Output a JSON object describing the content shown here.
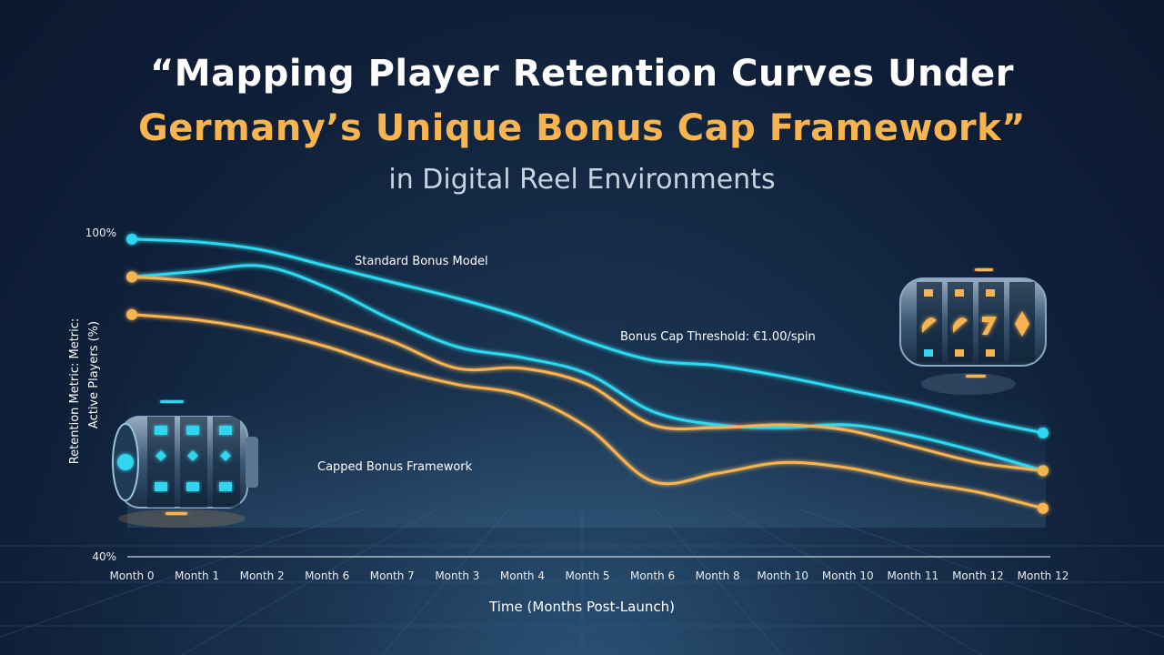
{
  "header": {
    "title_line1": "“Mapping Player Retention Curves Under",
    "title_line2": "Germany’s Unique Bonus Cap Framework”",
    "subtitle": "in Digital Reel Environments"
  },
  "colors": {
    "cyan": "#2fd8f0",
    "orange": "#f7b451",
    "title_white": "#ffffff",
    "title_orange": "#f7b451"
  },
  "icons": [
    "slot-reel-cyan-icon",
    "slot-reel-gold-icon"
  ],
  "chart_data": {
    "type": "line",
    "x_labels": [
      "Month 0",
      "Month 1",
      "Month 2",
      "Month 6",
      "Month 7",
      "Month 3",
      "Month 4",
      "Month 5",
      "Month 6",
      "Month 8",
      "Month 10",
      "Month 10",
      "Month 11",
      "Month 12",
      "Month 12"
    ],
    "ylabel_line1": "Retention Metric: Metric:",
    "ylabel_line2": "Active Players (%)",
    "xlabel": "Time (Months Post-Launch)",
    "y_tick_top": "100%",
    "y_tick_bottom": "40%",
    "ylim": [
      40,
      100
    ],
    "grid": false,
    "annotations": {
      "standard": "Standard Bonus Model",
      "threshold": "Bonus Cap Threshold: €1.00/spin",
      "capped": "Capped Bonus Framework"
    },
    "series": [
      {
        "color": "#2fd8f0",
        "values": [
          99,
          98.5,
          97,
          94,
          91,
          88,
          84.5,
          80,
          76.5,
          75.5,
          73.5,
          71,
          68.5,
          65.5,
          63
        ]
      },
      {
        "color": "#2fd8f0",
        "values": [
          92,
          93,
          94,
          90,
          84,
          79,
          77,
          74,
          67,
          64.5,
          64,
          64.5,
          62.5,
          59.5,
          56
        ]
      },
      {
        "color": "#f7b451",
        "values": [
          92,
          91,
          88,
          84,
          80,
          75,
          75,
          72,
          64.5,
          64,
          64.5,
          63.5,
          60.5,
          57.5,
          56
        ]
      },
      {
        "color": "#f7b451",
        "values": [
          85,
          84,
          82,
          79,
          75,
          72,
          70,
          64,
          54,
          55.5,
          57.5,
          56.5,
          54,
          52,
          49
        ]
      }
    ]
  }
}
